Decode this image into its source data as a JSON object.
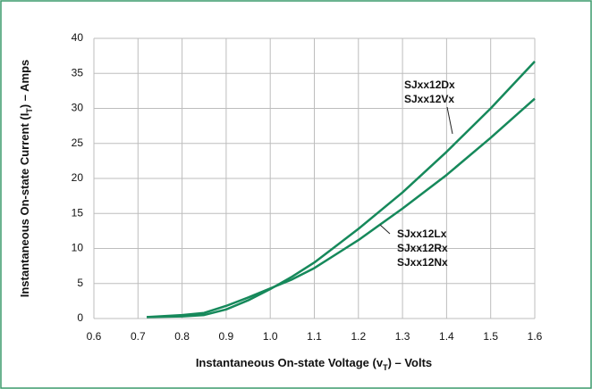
{
  "chart_data": {
    "type": "line",
    "ylabel": [
      "Instantaneous On-state Current (I",
      "T",
      ") – Amps"
    ],
    "xlabel": [
      "Instantaneous On-state Voltage (v",
      "T",
      ") – Volts"
    ],
    "x": [
      0.72,
      0.8,
      0.85,
      0.9,
      0.95,
      1.0,
      1.05,
      1.1,
      1.2,
      1.3,
      1.4,
      1.5,
      1.6
    ],
    "series": [
      {
        "labels": [
          "SJxx12Dx",
          "SJxx12Vx"
        ],
        "color": "#16895b",
        "values": [
          0.2,
          0.3,
          0.5,
          1.3,
          2.6,
          4.2,
          6.0,
          8.0,
          12.8,
          18.0,
          23.8,
          30.0,
          36.7
        ]
      },
      {
        "labels": [
          "SJxx12Lx",
          "SJxx12Rx",
          "SJxx12Nx"
        ],
        "color": "#16895b",
        "values": [
          0.2,
          0.5,
          0.8,
          1.8,
          3.0,
          4.3,
          5.6,
          7.2,
          11.2,
          15.7,
          20.5,
          25.8,
          31.4
        ]
      }
    ],
    "xlim": [
      0.6,
      1.6
    ],
    "xticks": [
      0.6,
      0.7,
      0.8,
      0.9,
      {
        "value": 1,
        "label": "1.0"
      },
      1.1,
      1.2,
      1.3,
      1.4,
      1.5,
      1.6
    ],
    "ylim": [
      0,
      40
    ],
    "yticks": [
      0,
      5,
      10,
      15,
      20,
      25,
      30,
      35,
      40
    ],
    "grid": true
  }
}
